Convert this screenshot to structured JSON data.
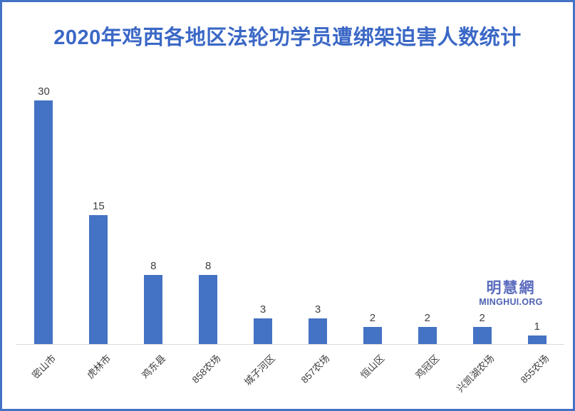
{
  "title": {
    "text": "2020年鸡西各地区法轮功学员遭绑架迫害人数统计",
    "color": "#3B68C6"
  },
  "watermark": {
    "cjk": "明慧網",
    "latin": "MINGHUI.ORG",
    "cjk_color": "#5B6CBE",
    "latin_color": "#4D61B2"
  },
  "frame": {
    "border_color": "#4472C4",
    "background": "#FFFFFF"
  },
  "chart_data": {
    "type": "bar",
    "title": "2020年鸡西各地区法轮功学员遭绑架迫害人数统计",
    "categories": [
      "密山市",
      "虎林市",
      "鸡东县",
      "858农场",
      "城子河区",
      "857农场",
      "恒山区",
      "鸡冠区",
      "兴凯湖农场",
      "855农场"
    ],
    "values": [
      30,
      15,
      8,
      8,
      3,
      3,
      2,
      2,
      2,
      1
    ],
    "xlabel": "",
    "ylabel": "",
    "ylim": [
      0,
      30
    ],
    "gridlines": false,
    "legend_position": "none",
    "data_labels": true,
    "bar_color": "#4472C4",
    "value_label_color": "#404040",
    "category_label_color": "#404040",
    "axis_line_color": "#D9D9D9"
  }
}
